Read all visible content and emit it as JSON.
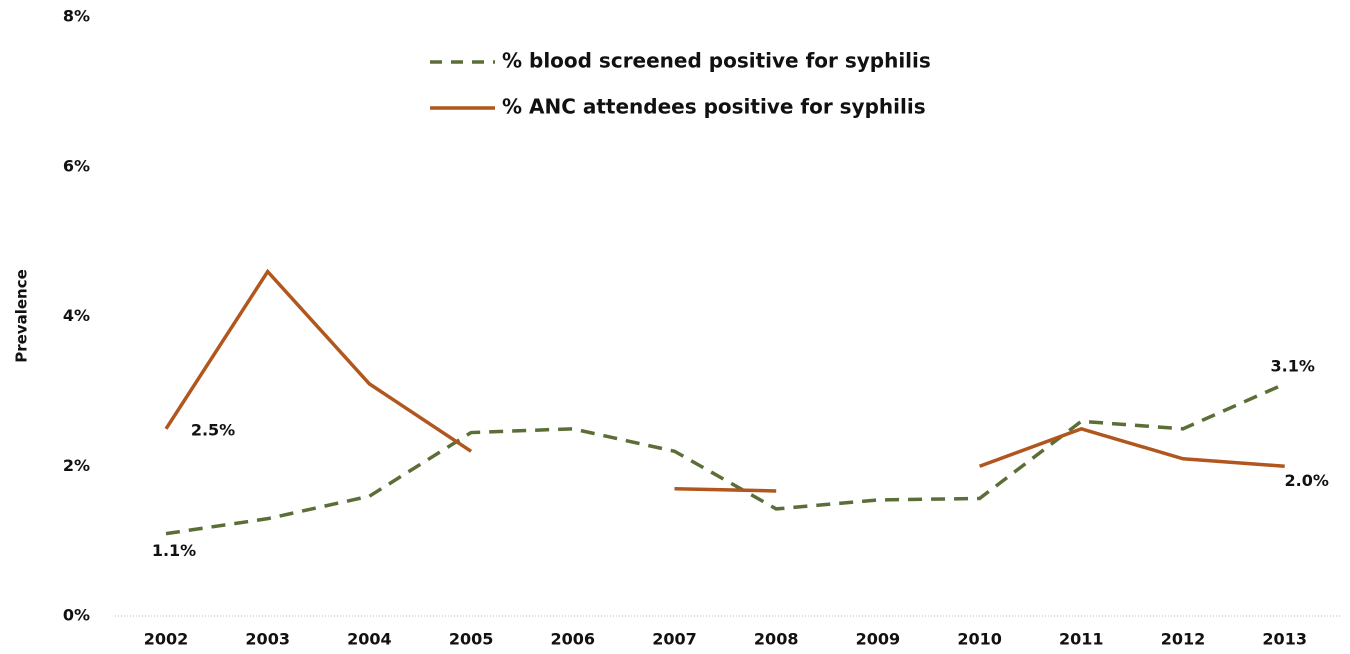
{
  "chart_data": {
    "type": "line",
    "ylabel": "Prevalence",
    "categories": [
      "2002",
      "2003",
      "2004",
      "2005",
      "2006",
      "2007",
      "2008",
      "2009",
      "2010",
      "2011",
      "2012",
      "2013"
    ],
    "series": [
      {
        "name": "% blood screened positive for syphilis",
        "color": "#5b6e38",
        "dash": true,
        "values": [
          1.1,
          1.3,
          1.6,
          2.45,
          2.5,
          2.2,
          1.43,
          1.55,
          1.57,
          2.6,
          2.5,
          3.1
        ],
        "value_labels": [
          "1.1%",
          null,
          null,
          null,
          null,
          null,
          null,
          null,
          null,
          null,
          null,
          "3.1%"
        ]
      },
      {
        "name": "% ANC attendees positive for syphilis",
        "color": "#b1561c",
        "dash": false,
        "values": [
          2.5,
          4.6,
          3.1,
          2.2,
          null,
          1.7,
          1.67,
          null,
          2.0,
          2.5,
          2.1,
          2.0
        ],
        "value_labels": [
          "2.5%",
          null,
          null,
          null,
          null,
          null,
          null,
          null,
          null,
          null,
          null,
          "2.0%"
        ]
      }
    ],
    "ylim": [
      0,
      8
    ],
    "yticks": [
      {
        "value": 0,
        "label": "0%"
      },
      {
        "value": 2,
        "label": "2%"
      },
      {
        "value": 4,
        "label": "4%"
      },
      {
        "value": 6,
        "label": "6%"
      },
      {
        "value": 8,
        "label": "8%"
      }
    ],
    "grid": false,
    "legend": "top"
  }
}
